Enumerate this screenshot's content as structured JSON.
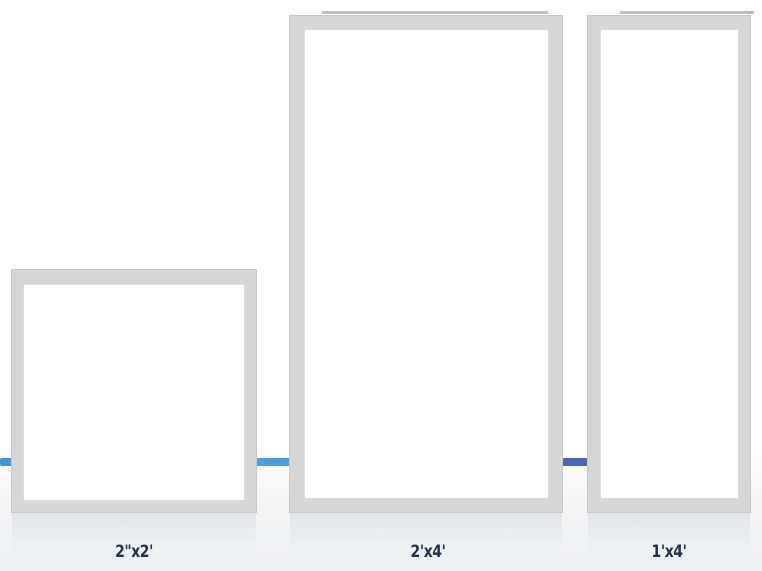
{
  "panels": [
    {
      "id": "2x2",
      "label": "2\"x2'"
    },
    {
      "id": "2x4",
      "label": "2'x4'"
    },
    {
      "id": "1x4",
      "label": "1'x4'"
    }
  ],
  "colors": {
    "frame": "#d6d6d6",
    "label_text": "#22324a",
    "accent_left": "#3e95d8",
    "accent_mid": "#4a9fde",
    "accent_right": "#4d63b8"
  }
}
